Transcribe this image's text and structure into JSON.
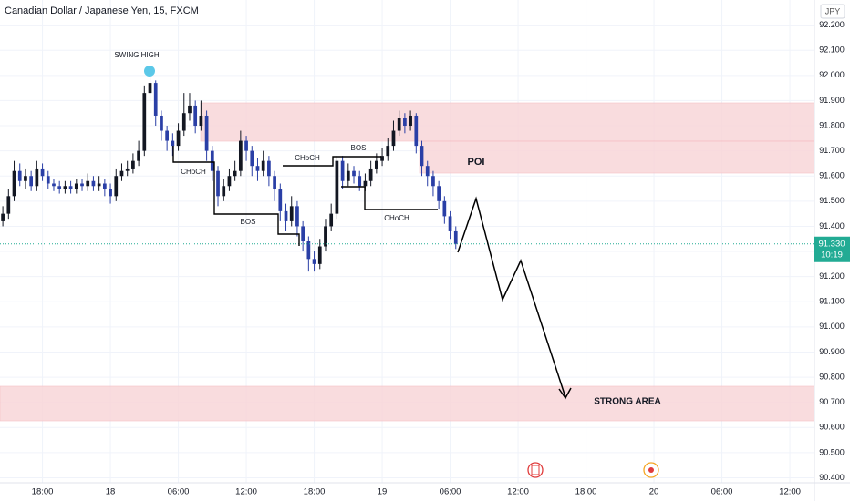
{
  "chart_data": {
    "type": "candlestick",
    "title": "Canadian Dollar / Japanese Yen, 15, FXCM",
    "currency": "JPY",
    "x": [
      -9.5,
      -9,
      -8.5,
      -8,
      -7.5,
      -7,
      -6.5,
      -6,
      -5.5,
      -5,
      -4.5,
      -4,
      -3.5,
      -3,
      -2.5,
      -2,
      -1.5,
      -1,
      -0.5,
      0,
      0.5,
      1,
      1.5,
      2,
      2.5,
      3,
      3.5,
      4,
      4.5,
      5,
      5.5,
      6,
      6.5,
      7,
      7.5,
      8,
      8.5,
      9,
      9.5,
      10,
      10.5,
      11,
      11.5,
      12,
      12.5,
      13,
      13.5,
      14,
      14.5,
      15,
      15.5,
      16,
      16.5,
      17,
      17.5,
      18,
      18.5,
      19,
      19.5,
      20,
      20.5,
      21,
      21.5,
      22,
      22.5,
      23,
      23.5,
      24,
      24.5,
      25,
      25.5,
      26,
      26.5,
      27,
      27.5,
      28,
      28.5,
      29,
      29.5,
      30,
      30.5
    ],
    "open": [
      91.42,
      91.45,
      91.52,
      91.62,
      91.58,
      91.6,
      91.56,
      91.63,
      91.6,
      91.57,
      91.56,
      91.55,
      91.56,
      91.55,
      91.57,
      91.56,
      91.58,
      91.56,
      91.57,
      91.55,
      91.52,
      91.6,
      91.62,
      91.63,
      91.66,
      91.7,
      91.93,
      91.97,
      91.84,
      91.78,
      91.74,
      91.72,
      91.78,
      91.85,
      91.88,
      91.8,
      91.84,
      91.7,
      91.62,
      91.52,
      91.56,
      91.6,
      91.62,
      91.74,
      91.7,
      91.64,
      91.62,
      91.66,
      91.6,
      91.55,
      91.46,
      91.42,
      91.48,
      91.4,
      91.34,
      91.27,
      91.25,
      91.32,
      91.4,
      91.45,
      91.66,
      91.58,
      91.62,
      91.6,
      91.56,
      91.58,
      91.63,
      91.66,
      91.68,
      91.72,
      91.78,
      91.83,
      91.8,
      91.84,
      91.72,
      91.64,
      91.6,
      91.56,
      91.5,
      91.44,
      91.38
    ],
    "high": [
      91.48,
      91.55,
      91.66,
      91.65,
      91.63,
      91.62,
      91.66,
      91.65,
      91.62,
      91.59,
      91.58,
      91.58,
      91.58,
      91.59,
      91.59,
      91.61,
      91.6,
      91.6,
      91.59,
      91.57,
      91.63,
      91.65,
      91.66,
      91.69,
      91.74,
      91.96,
      92.01,
      91.98,
      91.86,
      91.8,
      91.77,
      91.81,
      91.93,
      91.93,
      91.9,
      91.9,
      91.86,
      91.72,
      91.64,
      91.59,
      91.63,
      91.66,
      91.78,
      91.76,
      91.72,
      91.67,
      91.7,
      91.68,
      91.62,
      91.57,
      91.49,
      91.52,
      91.5,
      91.42,
      91.36,
      91.3,
      91.35,
      91.43,
      91.49,
      91.68,
      91.68,
      91.65,
      91.64,
      91.62,
      91.61,
      91.66,
      91.69,
      91.71,
      91.75,
      91.82,
      91.86,
      91.85,
      91.86,
      91.85,
      91.74,
      91.66,
      91.62,
      91.58,
      91.52,
      91.46,
      91.4
    ],
    "low": [
      91.4,
      91.43,
      91.5,
      91.56,
      91.55,
      91.54,
      91.54,
      91.58,
      91.55,
      91.54,
      91.53,
      91.53,
      91.53,
      91.53,
      91.54,
      91.54,
      91.54,
      91.54,
      91.52,
      91.49,
      91.5,
      91.58,
      91.6,
      91.61,
      91.64,
      91.68,
      91.89,
      91.8,
      91.74,
      91.7,
      91.68,
      91.7,
      91.76,
      91.82,
      91.77,
      91.78,
      91.66,
      91.58,
      91.48,
      91.5,
      91.54,
      91.58,
      91.6,
      91.66,
      91.6,
      91.58,
      91.6,
      91.56,
      91.5,
      91.42,
      91.38,
      91.4,
      91.36,
      91.3,
      91.22,
      91.22,
      91.23,
      91.3,
      91.38,
      91.43,
      91.55,
      91.56,
      91.57,
      91.54,
      91.54,
      91.56,
      91.61,
      91.64,
      91.66,
      91.7,
      91.76,
      91.77,
      91.78,
      91.69,
      91.6,
      91.56,
      91.52,
      91.47,
      91.41,
      91.35,
      91.31
    ],
    "close": [
      91.45,
      91.52,
      91.62,
      91.58,
      91.6,
      91.56,
      91.63,
      91.6,
      91.57,
      91.56,
      91.55,
      91.56,
      91.55,
      91.57,
      91.56,
      91.58,
      91.56,
      91.57,
      91.55,
      91.52,
      91.6,
      91.62,
      91.63,
      91.66,
      91.7,
      91.93,
      91.97,
      91.84,
      91.78,
      91.74,
      91.72,
      91.78,
      91.85,
      91.88,
      91.8,
      91.84,
      91.7,
      91.62,
      91.52,
      91.56,
      91.6,
      91.62,
      91.74,
      91.7,
      91.64,
      91.62,
      91.66,
      91.6,
      91.55,
      91.46,
      91.42,
      91.48,
      91.4,
      91.34,
      91.27,
      91.25,
      91.32,
      91.4,
      91.45,
      91.66,
      91.58,
      91.62,
      91.6,
      91.56,
      91.58,
      91.63,
      91.66,
      91.68,
      91.72,
      91.78,
      91.83,
      91.8,
      91.84,
      91.72,
      91.64,
      91.6,
      91.56,
      91.5,
      91.44,
      91.38,
      91.33
    ],
    "up_color": "#131722",
    "down_color": "#2a3fa6",
    "xlim": [
      -9.75,
      62.17
    ],
    "xticks": [
      {
        "value": -6,
        "label": "18:00"
      },
      {
        "value": 0,
        "label": "18"
      },
      {
        "value": 6,
        "label": "06:00"
      },
      {
        "value": 12,
        "label": "12:00"
      },
      {
        "value": 18,
        "label": "18:00"
      },
      {
        "value": 24,
        "label": "19"
      },
      {
        "value": 30,
        "label": "06:00"
      },
      {
        "value": 36,
        "label": "12:00"
      },
      {
        "value": 42,
        "label": "18:00"
      },
      {
        "value": 48,
        "label": "20"
      },
      {
        "value": 54,
        "label": "06:00"
      },
      {
        "value": 60,
        "label": "12:00"
      }
    ],
    "ylim": [
      90.38,
      92.3
    ],
    "yticks": [
      {
        "value": 90.4,
        "label": "90.400"
      },
      {
        "value": 90.5,
        "label": "90.500"
      },
      {
        "value": 90.6,
        "label": "90.600"
      },
      {
        "value": 90.7,
        "label": "90.700"
      },
      {
        "value": 90.8,
        "label": "90.800"
      },
      {
        "value": 90.9,
        "label": "90.900"
      },
      {
        "value": 91,
        "label": "91.000"
      },
      {
        "value": 91.1,
        "label": "91.100"
      },
      {
        "value": 91.2,
        "label": "91.200"
      },
      {
        "value": 91.3,
        "label": "91.300"
      },
      {
        "value": 91.4,
        "label": "91.400"
      },
      {
        "value": 91.5,
        "label": "91.500"
      },
      {
        "value": 91.6,
        "label": "91.600"
      },
      {
        "value": 91.7,
        "label": "91.700"
      },
      {
        "value": 91.8,
        "label": "91.800"
      },
      {
        "value": 91.9,
        "label": "91.900"
      },
      {
        "value": 92,
        "label": "92.000"
      },
      {
        "value": 92.1,
        "label": "92.100"
      },
      {
        "value": 92.2,
        "label": "92.200"
      }
    ],
    "grid": true,
    "last_price": {
      "value": 91.33,
      "label": "91.330"
    },
    "countdown": "10:19",
    "last_color": "#22ab94",
    "annotations": [
      "SWING HIGH",
      "CHoCH",
      "BOS",
      "CHoCH",
      "BOS",
      "CHoCH",
      "POI",
      "STRONG AREA"
    ]
  }
}
